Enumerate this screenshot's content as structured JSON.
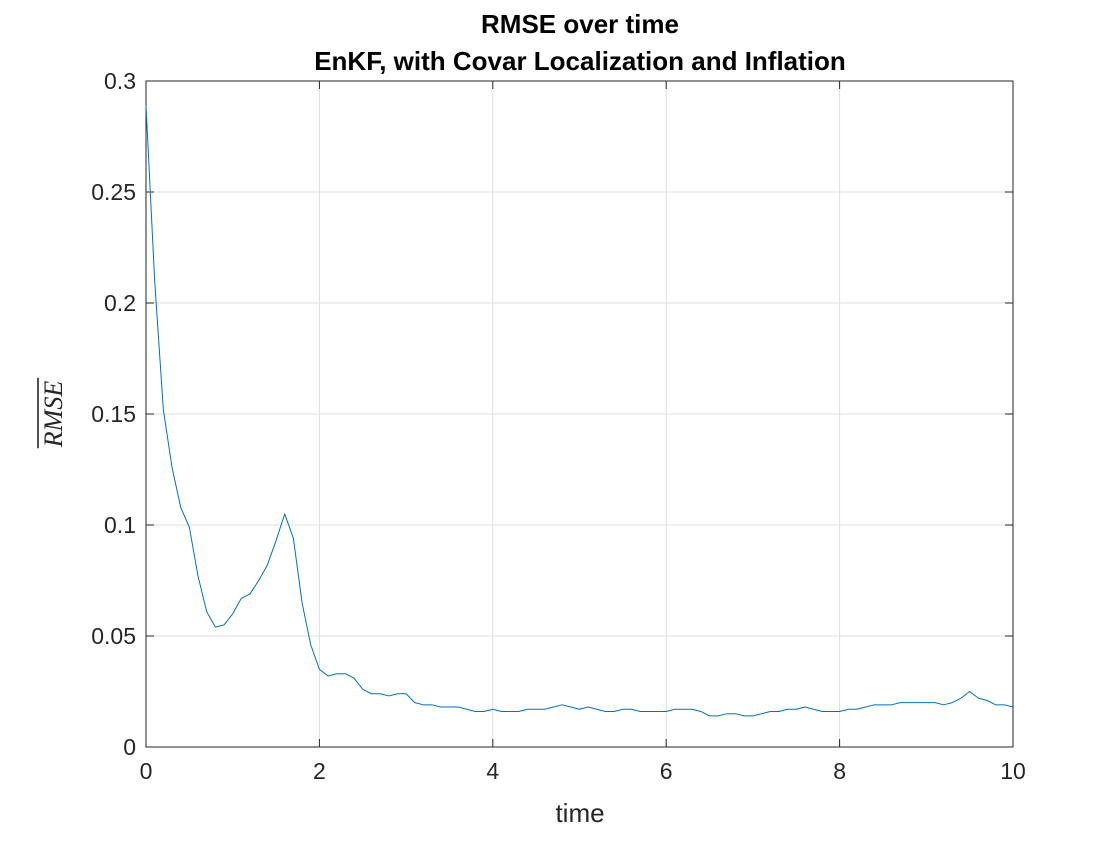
{
  "chart_data": {
    "type": "line",
    "title": [
      "RMSE over time",
      "EnKF, with Covar Localization and Inflation"
    ],
    "xlabel": "time",
    "ylabel": "RMSE",
    "ylabel_overline": true,
    "xlim": [
      0,
      10
    ],
    "ylim": [
      0,
      0.3
    ],
    "xticks": [
      0,
      2,
      4,
      6,
      8,
      10
    ],
    "xtick_labels": [
      "0",
      "2",
      "4",
      "6",
      "8",
      "10"
    ],
    "yticks": [
      0,
      0.05,
      0.1,
      0.15,
      0.2,
      0.25,
      0.3
    ],
    "ytick_labels": [
      "0",
      "0.05",
      "0.1",
      "0.15",
      "0.2",
      "0.25",
      "0.3"
    ],
    "grid": true,
    "line_color": "#0072BD",
    "series": [
      {
        "x": [
          0,
          0.1,
          0.2,
          0.3,
          0.4,
          0.5,
          0.6,
          0.7,
          0.8,
          0.9,
          1.0,
          1.1,
          1.2,
          1.3,
          1.4,
          1.5,
          1.6,
          1.7,
          1.8,
          1.9,
          2.0,
          2.1,
          2.2,
          2.3,
          2.4,
          2.5,
          2.6,
          2.7,
          2.8,
          2.9,
          3.0,
          3.1,
          3.2,
          3.3,
          3.4,
          3.5,
          3.6,
          3.7,
          3.8,
          3.9,
          4.0,
          4.1,
          4.2,
          4.3,
          4.4,
          4.5,
          4.6,
          4.7,
          4.8,
          4.9,
          5.0,
          5.1,
          5.2,
          5.3,
          5.4,
          5.5,
          5.6,
          5.7,
          5.8,
          5.9,
          6.0,
          6.1,
          6.2,
          6.3,
          6.4,
          6.5,
          6.6,
          6.7,
          6.8,
          6.9,
          7.0,
          7.1,
          7.2,
          7.3,
          7.4,
          7.5,
          7.6,
          7.7,
          7.8,
          7.9,
          8.0,
          8.1,
          8.2,
          8.3,
          8.4,
          8.5,
          8.6,
          8.7,
          8.8,
          8.9,
          9.0,
          9.1,
          9.2,
          9.3,
          9.4,
          9.5,
          9.6,
          9.7,
          9.8,
          9.9,
          10.0
        ],
        "y": [
          0.289,
          0.21,
          0.152,
          0.126,
          0.108,
          0.099,
          0.077,
          0.061,
          0.054,
          0.055,
          0.06,
          0.067,
          0.069,
          0.075,
          0.082,
          0.093,
          0.105,
          0.094,
          0.065,
          0.046,
          0.035,
          0.032,
          0.033,
          0.033,
          0.031,
          0.026,
          0.024,
          0.024,
          0.023,
          0.024,
          0.024,
          0.02,
          0.019,
          0.019,
          0.018,
          0.018,
          0.018,
          0.017,
          0.016,
          0.016,
          0.017,
          0.016,
          0.016,
          0.016,
          0.017,
          0.017,
          0.017,
          0.018,
          0.019,
          0.018,
          0.017,
          0.018,
          0.017,
          0.016,
          0.016,
          0.017,
          0.017,
          0.016,
          0.016,
          0.016,
          0.016,
          0.017,
          0.017,
          0.017,
          0.016,
          0.014,
          0.014,
          0.015,
          0.015,
          0.014,
          0.014,
          0.015,
          0.016,
          0.016,
          0.017,
          0.017,
          0.018,
          0.017,
          0.016,
          0.016,
          0.016,
          0.017,
          0.017,
          0.018,
          0.019,
          0.019,
          0.019,
          0.02,
          0.02,
          0.02,
          0.02,
          0.02,
          0.019,
          0.02,
          0.022,
          0.025,
          0.022,
          0.021,
          0.019,
          0.019,
          0.018
        ]
      }
    ]
  }
}
